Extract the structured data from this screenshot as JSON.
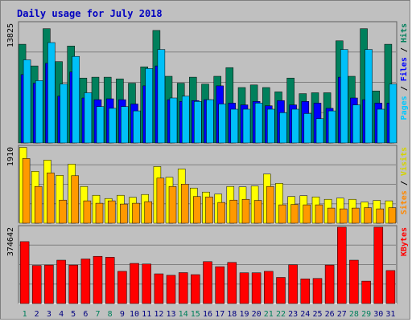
{
  "chart_data": {
    "title": "Daily usage for July 2018",
    "type": "bar",
    "days": [
      "1",
      "2",
      "3",
      "4",
      "5",
      "6",
      "7",
      "8",
      "9",
      "10",
      "11",
      "12",
      "13",
      "14",
      "15",
      "16",
      "17",
      "18",
      "19",
      "20",
      "21",
      "22",
      "23",
      "24",
      "25",
      "26",
      "27",
      "28",
      "29",
      "30",
      "31"
    ],
    "weekend_days": [
      "1",
      "7",
      "8",
      "14",
      "15",
      "21",
      "22",
      "28",
      "29"
    ],
    "panels": [
      {
        "name": "hits-files-pages",
        "ylabel_parts": [
          {
            "text": "Pages",
            "color": "#00c8ff"
          },
          {
            "text": " / ",
            "color": "#000000"
          },
          {
            "text": "Files",
            "color": "#0000ff"
          },
          {
            "text": " / ",
            "color": "#000000"
          },
          {
            "text": "Hits",
            "color": "#00805c"
          }
        ],
        "max_label": "13825",
        "ylim": [
          0,
          13825
        ],
        "series": [
          {
            "name": "Hits",
            "color": "#00805c",
            "values": [
              11400,
              8900,
              13200,
              9400,
              11200,
              7500,
              7600,
              7600,
              7400,
              6900,
              8800,
              13000,
              7700,
              6900,
              7600,
              6800,
              7700,
              8700,
              6400,
              6700,
              6400,
              5900,
              7500,
              5700,
              5800,
              5800,
              11800,
              7700,
              13200,
              6000,
              11400
            ]
          },
          {
            "name": "Files",
            "color": "#0000ff",
            "values": [
              7900,
              6900,
              9200,
              5400,
              8200,
              5200,
              5000,
              5100,
              5000,
              4500,
              6600,
              8900,
              5000,
              4800,
              4900,
              5000,
              6600,
              4600,
              4400,
              4800,
              4300,
              4900,
              4400,
              4800,
              4600,
              4000,
              7600,
              5200,
              5000,
              4600,
              4600
            ]
          },
          {
            "name": "Pages",
            "color": "#00c0f8",
            "values": [
              9600,
              7200,
              11600,
              6800,
              10000,
              5800,
              4200,
              4000,
              4200,
              3700,
              8600,
              10800,
              5200,
              5400,
              4800,
              5000,
              4500,
              3900,
              3900,
              4600,
              3900,
              3500,
              3900,
              3400,
              2800,
              3700,
              10800,
              4400,
              10800,
              3900,
              6800
            ]
          }
        ]
      },
      {
        "name": "visits-sites",
        "ylabel_parts": [
          {
            "text": "Sites",
            "color": "#ff8800"
          },
          {
            "text": " / ",
            "color": "#000000"
          },
          {
            "text": "Visits",
            "color": "#d4d400"
          }
        ],
        "max_label": "1910",
        "ylim": [
          0,
          1910
        ],
        "series": [
          {
            "name": "Visits",
            "color": "#ffff00",
            "values": [
              1900,
              1300,
              1580,
              1200,
              1480,
              920,
              700,
              620,
              700,
              650,
              720,
              1420,
              1150,
              1360,
              880,
              780,
              730,
              920,
              910,
              930,
              1230,
              1000,
              670,
              690,
              660,
              600,
              630,
              600,
              530,
              570,
              560
            ]
          },
          {
            "name": "Sites",
            "color": "#ff9900",
            "values": [
              1620,
              920,
              1260,
              580,
              1190,
              560,
              500,
              560,
              480,
              500,
              540,
              1130,
              920,
              980,
              670,
              660,
              520,
              580,
              600,
              570,
              920,
              460,
              470,
              460,
              460,
              380,
              360,
              380,
              390,
              360,
              390
            ]
          }
        ]
      },
      {
        "name": "kbytes",
        "ylabel_parts": [
          {
            "text": "KBytes",
            "color": "#ff0000"
          }
        ],
        "max_label": "374642",
        "ylim": [
          0,
          374642
        ],
        "series": [
          {
            "name": "KBytes",
            "color": "#ff0000",
            "values": [
              304000,
              187000,
              189000,
              213000,
              189000,
              219000,
              232000,
              227000,
              158000,
              197000,
              194000,
              146000,
              139000,
              152000,
              142000,
              206000,
              181000,
              202000,
              151000,
              151000,
              158000,
              128000,
              190000,
              121000,
              123000,
              189000,
              375000,
              213000,
              110000,
              375000,
              162000
            ]
          }
        ]
      }
    ]
  },
  "colors": {
    "background": "#c0c0c0",
    "grid": "#808080",
    "axis_light": "#ffffff",
    "axis_dark": "#606060",
    "title": "#0000c0",
    "weekday_label": "#000080",
    "weekend_label": "#00805c"
  }
}
